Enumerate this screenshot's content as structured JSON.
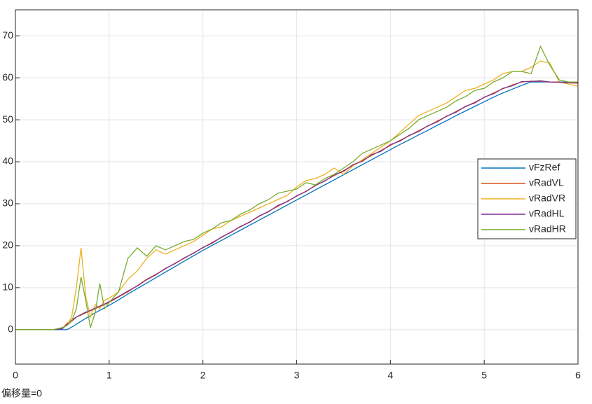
{
  "chart_data": {
    "type": "line",
    "annotation": "偏移量=0",
    "x": [
      0,
      0.1,
      0.2,
      0.3,
      0.4,
      0.5,
      0.55,
      0.6,
      0.65,
      0.7,
      0.75,
      0.8,
      0.85,
      0.9,
      0.95,
      1,
      1.1,
      1.2,
      1.3,
      1.4,
      1.5,
      1.6,
      1.7,
      1.8,
      1.9,
      2,
      2.1,
      2.2,
      2.3,
      2.4,
      2.5,
      2.6,
      2.7,
      2.8,
      2.9,
      3,
      3.1,
      3.2,
      3.3,
      3.4,
      3.5,
      3.6,
      3.7,
      3.8,
      3.9,
      4,
      4.1,
      4.2,
      4.3,
      4.4,
      4.5,
      4.6,
      4.7,
      4.8,
      4.9,
      5,
      5.1,
      5.2,
      5.3,
      5.4,
      5.5,
      5.6,
      5.7,
      5.8,
      5.9,
      6
    ],
    "series": [
      {
        "name": "vFzRef",
        "color": "#0072bd",
        "values": [
          0,
          0,
          0,
          0,
          0,
          0,
          0,
          0.6,
          1.3,
          2,
          2.7,
          3.3,
          4,
          4.6,
          5.2,
          5.8,
          7.1,
          8.5,
          9.8,
          11.1,
          12.4,
          13.7,
          15,
          16.3,
          17.6,
          18.9,
          20.1,
          21.3,
          22.5,
          23.7,
          24.9,
          26.1,
          27.3,
          28.5,
          29.7,
          30.9,
          32.1,
          33.3,
          34.5,
          35.7,
          36.9,
          38.1,
          39.3,
          40.5,
          41.7,
          42.9,
          44.1,
          45.2,
          46.4,
          47.5,
          48.7,
          49.8,
          51,
          52.1,
          53.2,
          54.3,
          55.4,
          56.4,
          57.3,
          58.2,
          59,
          59,
          59,
          59,
          59,
          59
        ]
      },
      {
        "name": "vRadVL",
        "color": "#d95319",
        "values": [
          0,
          0,
          0,
          0,
          0,
          0.3,
          1.5,
          2.3,
          3,
          3.5,
          4,
          4.5,
          5,
          5.5,
          6,
          6.5,
          7.8,
          9,
          10.5,
          12,
          13.2,
          14.5,
          15.8,
          17,
          18.3,
          19.5,
          20.8,
          22,
          23.3,
          24.5,
          25.7,
          27,
          28.2,
          29.4,
          30.6,
          31.8,
          33,
          34.3,
          35.5,
          36.7,
          37.9,
          39.1,
          40.3,
          41.5,
          42.7,
          43.9,
          45.1,
          46.2,
          47.4,
          48.5,
          49.7,
          50.8,
          52,
          53.1,
          54.2,
          55.3,
          56.4,
          57.4,
          58.3,
          59,
          59.2,
          59.2,
          59,
          58.9,
          58.8,
          58.7
        ]
      },
      {
        "name": "vRadVR",
        "color": "#edb120",
        "values": [
          0,
          0,
          0,
          0,
          0,
          0.5,
          1,
          3,
          10,
          19.5,
          8,
          3,
          6,
          5,
          7,
          7.5,
          9,
          12,
          14,
          17,
          19,
          18,
          19,
          20,
          21,
          22.5,
          24,
          24.5,
          26,
          27,
          28,
          29,
          30,
          31,
          32,
          34,
          35.5,
          36,
          37,
          38.5,
          37,
          39,
          40.5,
          42,
          43.5,
          45,
          47,
          49,
          51,
          52,
          53,
          54,
          55.5,
          57,
          57.5,
          58.5,
          59.5,
          61,
          61.5,
          61.5,
          62.5,
          64,
          63.5,
          59,
          58.5,
          58
        ]
      },
      {
        "name": "vRadHL",
        "color": "#7e2f8e",
        "values": [
          0,
          0,
          0,
          0,
          0,
          0.2,
          1.2,
          2,
          3,
          3.6,
          4.2,
          4.6,
          5.1,
          5.6,
          6.1,
          6.7,
          7.9,
          9.2,
          10.4,
          11.9,
          13.1,
          14.6,
          15.7,
          17.1,
          18.2,
          19.6,
          20.6,
          22.1,
          23.2,
          24.6,
          25.6,
          27.1,
          28.1,
          29.6,
          30.5,
          31.9,
          32.9,
          34.4,
          35.4,
          36.9,
          37.7,
          39.3,
          40.1,
          41.7,
          42.5,
          44.1,
          44.9,
          46.3,
          47.2,
          48.6,
          49.5,
          50.9,
          51.8,
          53.2,
          54,
          55.4,
          56.2,
          57.5,
          58.1,
          59.1,
          59.1,
          59.3,
          59,
          59,
          58.8,
          58.9
        ]
      },
      {
        "name": "vRadHR",
        "color": "#77ac30",
        "values": [
          0,
          0,
          0,
          0,
          0,
          0.5,
          1,
          2,
          5,
          12.5,
          7,
          0.5,
          4,
          11,
          5,
          6.5,
          9,
          17,
          19.5,
          17.5,
          20,
          19,
          20,
          21,
          21.5,
          23,
          24,
          25.5,
          26,
          27.5,
          28.5,
          30,
          31,
          32.5,
          33,
          33.5,
          35,
          34.5,
          36,
          37,
          38.5,
          40,
          42,
          43,
          44,
          45,
          46.5,
          48,
          50,
          51,
          52,
          53,
          54.5,
          55.5,
          57,
          57.5,
          59,
          60,
          61.5,
          61.5,
          61,
          67.5,
          63,
          59.5,
          59,
          59
        ]
      }
    ],
    "xlim": [
      0,
      6
    ],
    "xticks": [
      0,
      1,
      2,
      3,
      4,
      5,
      6
    ],
    "ylim": [
      -8.2,
      76.2
    ],
    "yticks": [
      0,
      10,
      20,
      30,
      40,
      50,
      60,
      70
    ],
    "grid": true,
    "legend": "east"
  }
}
